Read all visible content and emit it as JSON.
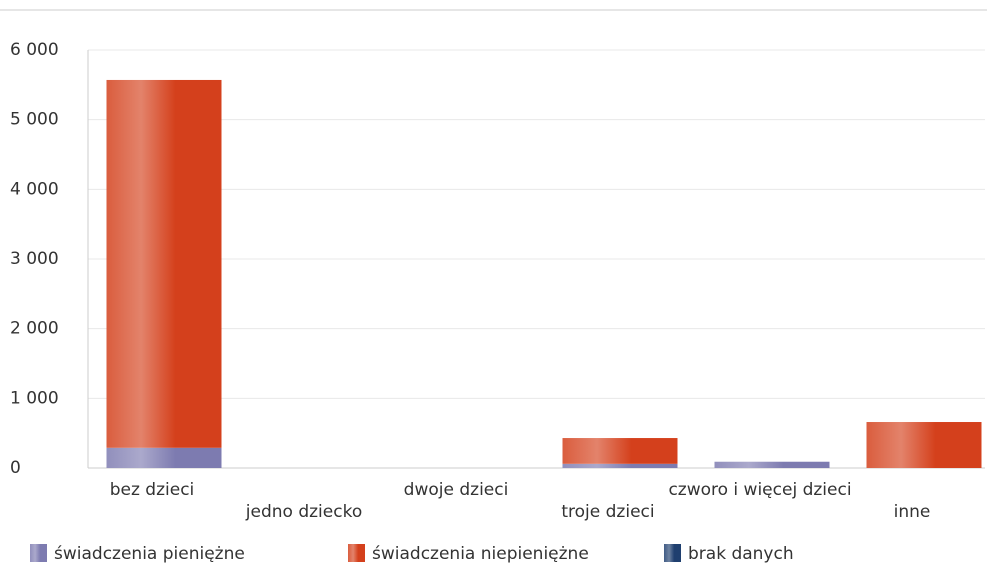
{
  "chart_data": {
    "type": "stacked_bar",
    "categories": [
      "bez dzieci",
      "jedno dziecko",
      "dwoje dzieci",
      "troje dzieci",
      "czworo i więcej dzieci",
      "inne"
    ],
    "series": [
      {
        "name": "świadczenia pieniężne",
        "color": "#7d7bb0",
        "values": [
          290,
          0,
          0,
          60,
          90,
          0
        ]
      },
      {
        "name": "świadczenia niepieniężne",
        "color": "#d4401c",
        "values": [
          5280,
          0,
          0,
          370,
          0,
          660
        ]
      },
      {
        "name": "brak danych",
        "color": "#1f3f6f",
        "values": [
          0,
          0,
          0,
          0,
          0,
          0
        ]
      }
    ],
    "ylim": [
      0,
      6000
    ],
    "yticks": [
      0,
      {
        "value": 1000,
        "label": "1 000"
      },
      {
        "value": 2000,
        "label": "2 000"
      },
      {
        "value": 3000,
        "label": "3 000"
      },
      {
        "value": 4000,
        "label": "4 000"
      },
      {
        "value": 5000,
        "label": "5 000"
      },
      {
        "value": 6000,
        "label": "6 000"
      }
    ],
    "grid": true
  }
}
